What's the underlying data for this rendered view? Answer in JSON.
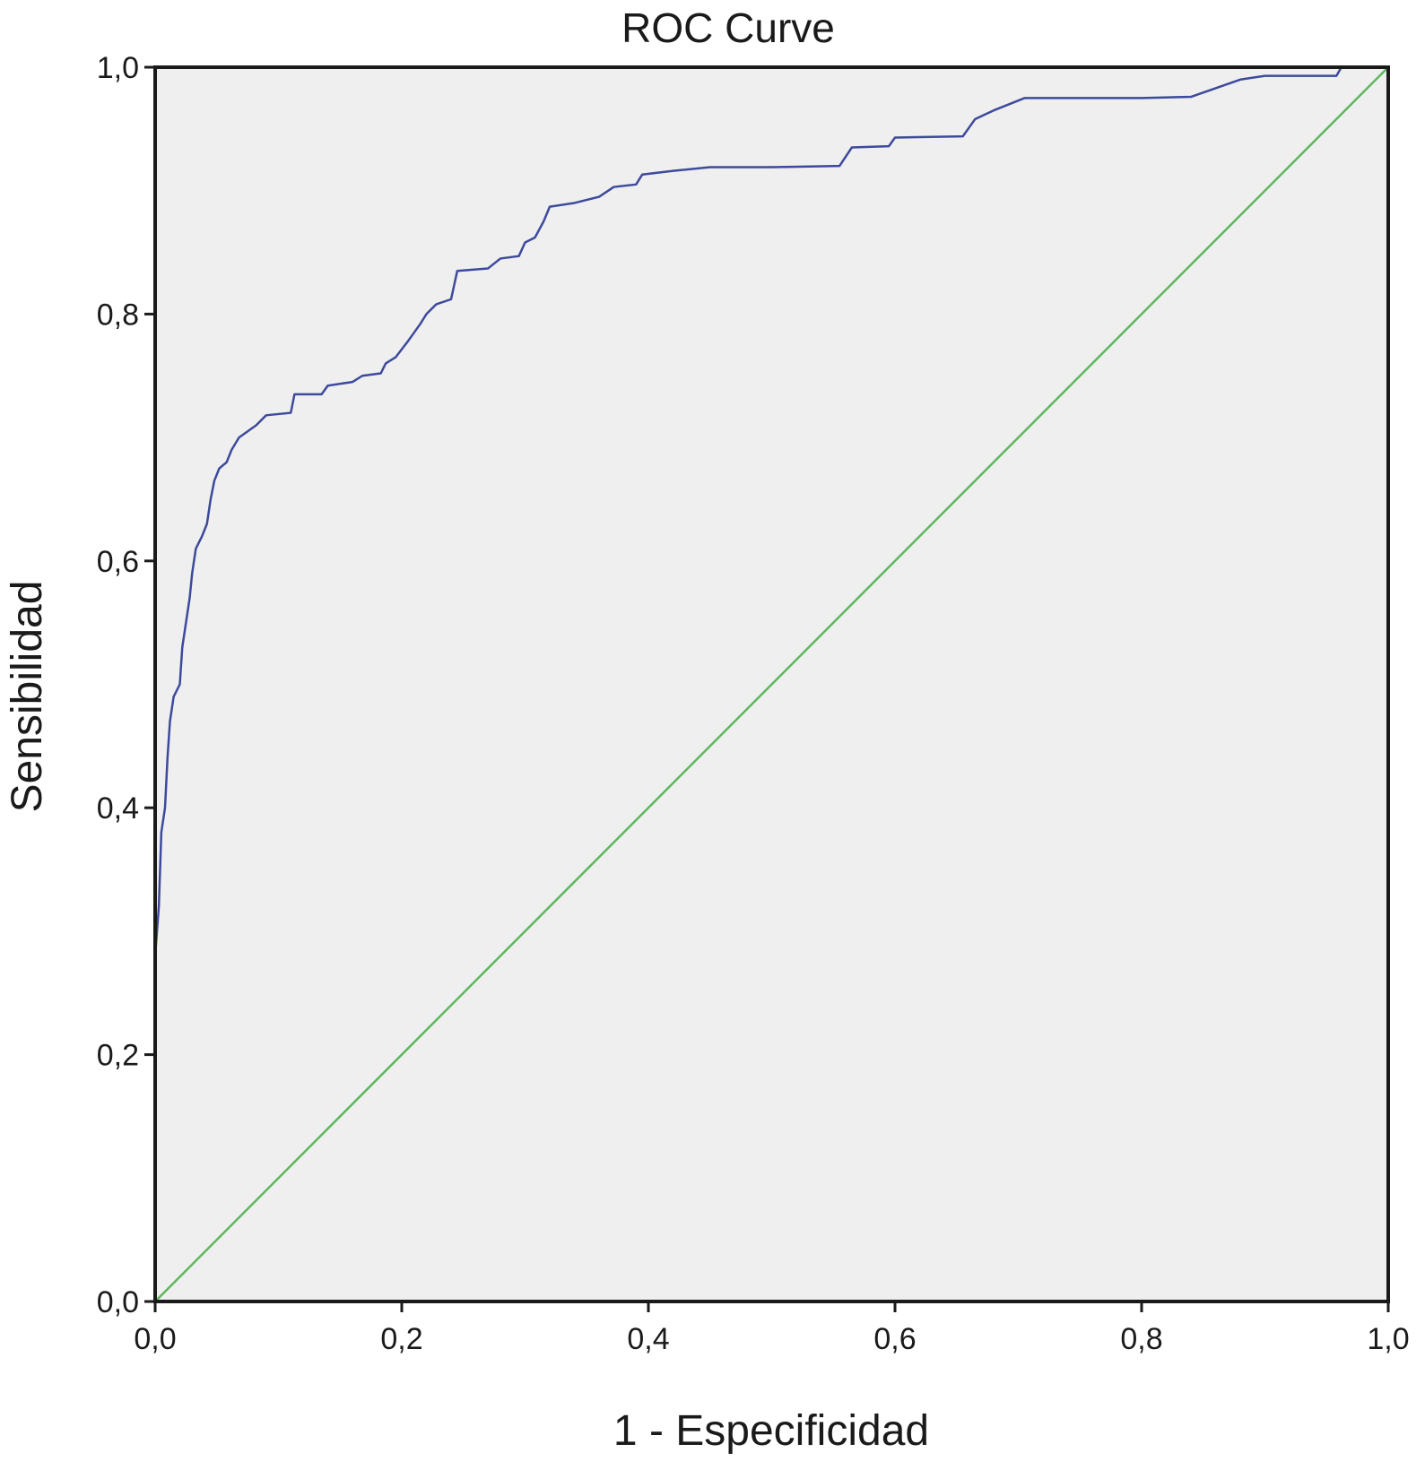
{
  "chart_data": {
    "type": "line",
    "title": "ROC Curve",
    "xlabel": "1 - Especificidad",
    "ylabel": "Sensibilidad",
    "xlim": [
      0,
      1
    ],
    "ylim": [
      0,
      1
    ],
    "x_ticks": [
      "0,0",
      "0,2",
      "0,4",
      "0,6",
      "0,8",
      "1,0"
    ],
    "y_ticks": [
      "0,0",
      "0,2",
      "0,4",
      "0,6",
      "0,8",
      "1,0"
    ],
    "grid": false,
    "legend": "none",
    "colors": {
      "roc": "#3d4a9c",
      "reference": "#5cb85c",
      "background": "#efefef"
    },
    "series": [
      {
        "role": "roc",
        "points": [
          [
            0.0,
            0.0
          ],
          [
            0.0,
            0.28
          ],
          [
            0.003,
            0.32
          ],
          [
            0.005,
            0.38
          ],
          [
            0.008,
            0.4
          ],
          [
            0.01,
            0.44
          ],
          [
            0.012,
            0.47
          ],
          [
            0.015,
            0.49
          ],
          [
            0.02,
            0.5
          ],
          [
            0.022,
            0.53
          ],
          [
            0.025,
            0.55
          ],
          [
            0.028,
            0.57
          ],
          [
            0.03,
            0.59
          ],
          [
            0.033,
            0.61
          ],
          [
            0.038,
            0.62
          ],
          [
            0.042,
            0.63
          ],
          [
            0.045,
            0.65
          ],
          [
            0.048,
            0.665
          ],
          [
            0.052,
            0.675
          ],
          [
            0.058,
            0.68
          ],
          [
            0.062,
            0.69
          ],
          [
            0.068,
            0.7
          ],
          [
            0.075,
            0.705
          ],
          [
            0.082,
            0.71
          ],
          [
            0.09,
            0.718
          ],
          [
            0.11,
            0.72
          ],
          [
            0.113,
            0.735
          ],
          [
            0.135,
            0.735
          ],
          [
            0.14,
            0.742
          ],
          [
            0.16,
            0.745
          ],
          [
            0.168,
            0.75
          ],
          [
            0.183,
            0.752
          ],
          [
            0.187,
            0.76
          ],
          [
            0.195,
            0.765
          ],
          [
            0.205,
            0.778
          ],
          [
            0.215,
            0.792
          ],
          [
            0.22,
            0.8
          ],
          [
            0.228,
            0.808
          ],
          [
            0.24,
            0.812
          ],
          [
            0.245,
            0.835
          ],
          [
            0.27,
            0.837
          ],
          [
            0.28,
            0.845
          ],
          [
            0.295,
            0.847
          ],
          [
            0.3,
            0.858
          ],
          [
            0.308,
            0.862
          ],
          [
            0.315,
            0.875
          ],
          [
            0.32,
            0.887
          ],
          [
            0.34,
            0.89
          ],
          [
            0.36,
            0.895
          ],
          [
            0.372,
            0.903
          ],
          [
            0.39,
            0.905
          ],
          [
            0.395,
            0.913
          ],
          [
            0.42,
            0.916
          ],
          [
            0.45,
            0.919
          ],
          [
            0.5,
            0.919
          ],
          [
            0.555,
            0.92
          ],
          [
            0.565,
            0.935
          ],
          [
            0.595,
            0.936
          ],
          [
            0.6,
            0.943
          ],
          [
            0.655,
            0.944
          ],
          [
            0.665,
            0.958
          ],
          [
            0.68,
            0.965
          ],
          [
            0.705,
            0.975
          ],
          [
            0.8,
            0.975
          ],
          [
            0.84,
            0.976
          ],
          [
            0.86,
            0.983
          ],
          [
            0.88,
            0.99
          ],
          [
            0.9,
            0.993
          ],
          [
            0.958,
            0.993
          ],
          [
            0.962,
            1.0
          ],
          [
            1.0,
            1.0
          ]
        ]
      },
      {
        "role": "reference",
        "points": [
          [
            0,
            0
          ],
          [
            1,
            1
          ]
        ]
      }
    ]
  }
}
